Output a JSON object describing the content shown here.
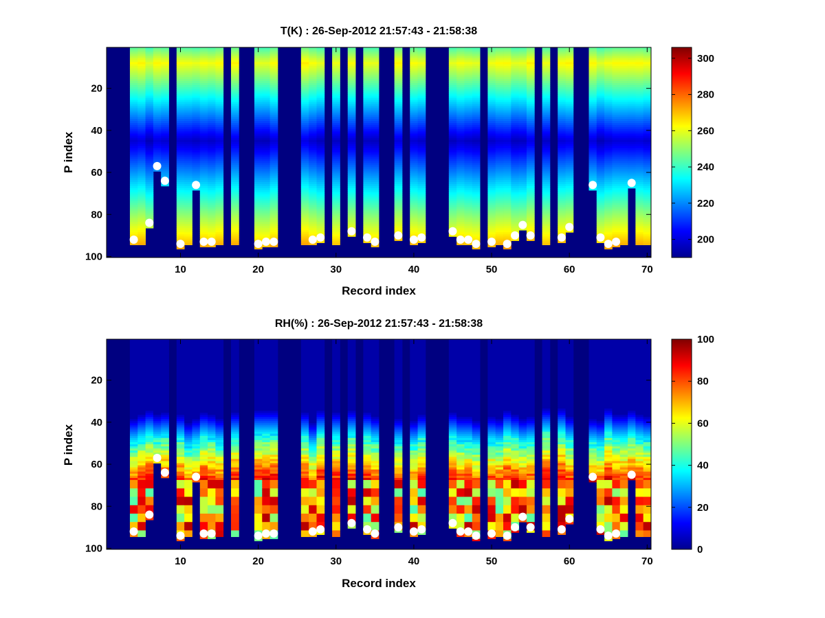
{
  "chart_data": [
    {
      "type": "heatmap",
      "title": "T(K) : 26-Sep-2012 21:57:43 - 21:58:38",
      "xlabel": "Record index",
      "ylabel": "P index",
      "xlim": [
        0.5,
        70.5
      ],
      "ylim": [
        0.5,
        100.5
      ],
      "y_reversed": true,
      "xticks": [
        10,
        20,
        30,
        40,
        50,
        60,
        70
      ],
      "yticks": [
        20,
        40,
        60,
        80,
        100
      ],
      "colormap": "jet",
      "colorbar": {
        "range": [
          190,
          306
        ],
        "ticks": [
          200,
          220,
          240,
          260,
          280,
          300
        ]
      },
      "fill_value": 190,
      "missing_records": [
        1,
        2,
        3,
        9,
        16,
        18,
        19,
        23,
        24,
        25,
        29,
        31,
        33,
        36,
        37,
        39,
        42,
        43,
        44,
        49,
        56,
        58,
        61,
        62
      ],
      "markers": {
        "color": "#ffffff",
        "points": [
          [
            4,
            92
          ],
          [
            6,
            84
          ],
          [
            7,
            57
          ],
          [
            8,
            64
          ],
          [
            10,
            94
          ],
          [
            12,
            66
          ],
          [
            13,
            93
          ],
          [
            14,
            93
          ],
          [
            20,
            94
          ],
          [
            21,
            93
          ],
          [
            22,
            93
          ],
          [
            27,
            92
          ],
          [
            28,
            91
          ],
          [
            32,
            88
          ],
          [
            34,
            91
          ],
          [
            35,
            93
          ],
          [
            38,
            90
          ],
          [
            40,
            92
          ],
          [
            41,
            91
          ],
          [
            45,
            88
          ],
          [
            46,
            92
          ],
          [
            47,
            92
          ],
          [
            48,
            94
          ],
          [
            50,
            93
          ],
          [
            52,
            94
          ],
          [
            53,
            90
          ],
          [
            54,
            85
          ],
          [
            55,
            90
          ],
          [
            59,
            91
          ],
          [
            60,
            86
          ],
          [
            63,
            66
          ],
          [
            64,
            91
          ],
          [
            65,
            94
          ],
          [
            66,
            93
          ],
          [
            68,
            65
          ]
        ]
      }
    },
    {
      "type": "heatmap",
      "title": "RH(%) : 26-Sep-2012 21:57:43 - 21:58:38",
      "xlabel": "Record index",
      "ylabel": "P index",
      "xlim": [
        0.5,
        70.5
      ],
      "ylim": [
        0.5,
        100.5
      ],
      "y_reversed": true,
      "xticks": [
        10,
        20,
        30,
        40,
        50,
        60,
        70
      ],
      "yticks": [
        20,
        40,
        60,
        80,
        100
      ],
      "colormap": "jet",
      "colorbar": {
        "range": [
          0,
          100
        ],
        "ticks": [
          0,
          20,
          40,
          60,
          80,
          100
        ]
      },
      "fill_value": 0,
      "missing_records": [
        1,
        2,
        3,
        9,
        16,
        18,
        19,
        23,
        24,
        25,
        29,
        31,
        33,
        36,
        37,
        39,
        42,
        43,
        44,
        49,
        56,
        58,
        61,
        62
      ],
      "markers": {
        "color": "#ffffff",
        "points": [
          [
            4,
            92
          ],
          [
            6,
            84
          ],
          [
            7,
            57
          ],
          [
            8,
            64
          ],
          [
            10,
            94
          ],
          [
            12,
            66
          ],
          [
            13,
            93
          ],
          [
            14,
            93
          ],
          [
            20,
            94
          ],
          [
            21,
            93
          ],
          [
            22,
            93
          ],
          [
            27,
            92
          ],
          [
            28,
            91
          ],
          [
            32,
            88
          ],
          [
            34,
            91
          ],
          [
            35,
            93
          ],
          [
            38,
            90
          ],
          [
            40,
            92
          ],
          [
            41,
            91
          ],
          [
            45,
            88
          ],
          [
            46,
            92
          ],
          [
            47,
            92
          ],
          [
            48,
            94
          ],
          [
            50,
            93
          ],
          [
            52,
            94
          ],
          [
            53,
            90
          ],
          [
            54,
            85
          ],
          [
            55,
            90
          ],
          [
            59,
            91
          ],
          [
            60,
            86
          ],
          [
            63,
            66
          ],
          [
            64,
            91
          ],
          [
            65,
            94
          ],
          [
            66,
            93
          ],
          [
            68,
            65
          ]
        ]
      }
    }
  ]
}
